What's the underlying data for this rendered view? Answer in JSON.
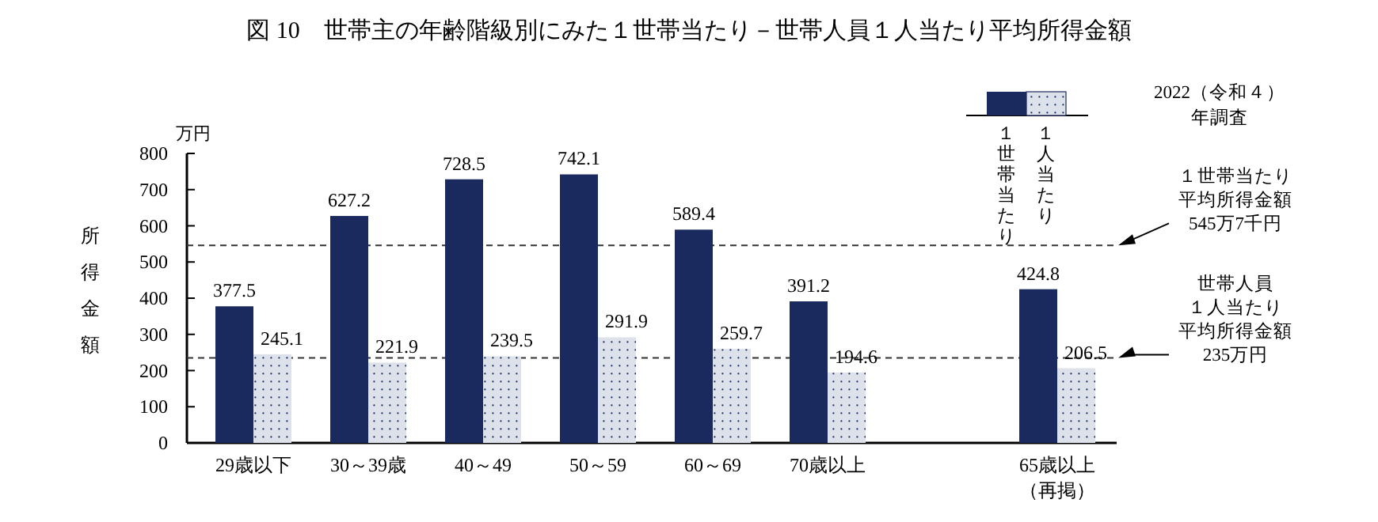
{
  "chart_data": {
    "type": "bar",
    "title": "図 10　世帯主の年齢階級別にみた１世帯当たり－世帯人員１人当たり平均所得金額",
    "ylabel": "所得金額",
    "legend_title": "2022（令和４）年調査",
    "annotations": [
      "万円"
    ],
    "categories": [
      "29歳以下",
      "30～39歳",
      "40～49",
      "50～59",
      "60～69",
      "70歳以上",
      null,
      "65歳以上（再掲）"
    ],
    "series": [
      {
        "name": "１世帯当たり",
        "color": "#1b2a5e",
        "values": [
          377.5,
          627.2,
          728.5,
          742.1,
          589.4,
          391.2,
          null,
          424.8
        ]
      },
      {
        "name": "１人当たり",
        "color": "#dde1ea",
        "values": [
          245.1,
          221.9,
          239.5,
          291.9,
          259.7,
          194.6,
          null,
          206.5
        ]
      }
    ],
    "ylim": [
      0,
      800
    ],
    "yticks": [
      0,
      100,
      200,
      300,
      400,
      500,
      600,
      700,
      800
    ],
    "data_labels": true,
    "legend": "top right",
    "ref_lines": [
      {
        "axis": "y",
        "value": 545.7,
        "label": "１世帯当たり平均所得金額545万7千円",
        "line_style": "dashed"
      },
      {
        "axis": "y",
        "value": 235,
        "label": "世帯人員１人当たり平均所得金額235万円",
        "line_style": "dashed"
      }
    ]
  }
}
